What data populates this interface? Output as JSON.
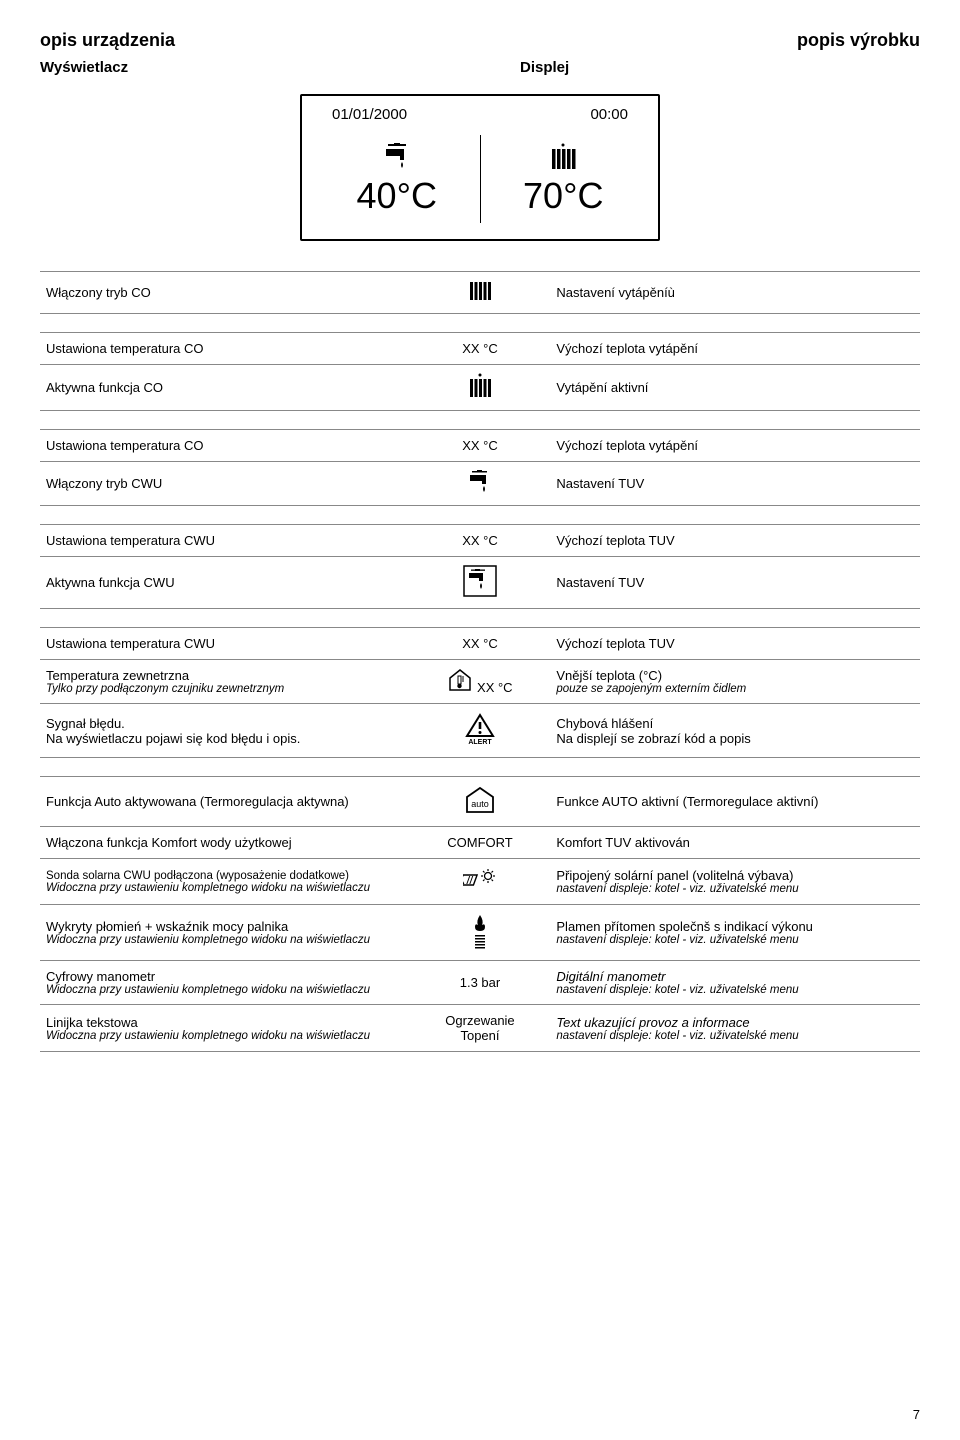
{
  "header": {
    "left": "opis urządzenia",
    "right": "popis výrobku"
  },
  "sub": {
    "left": "Wyświetlacz",
    "right": "Displej"
  },
  "display": {
    "date": "01/01/2000",
    "time": "00:00",
    "temp_left": "40°C",
    "temp_right": "70°C"
  },
  "groups": [
    {
      "rows": [
        {
          "l": "Włączony tryb CO",
          "icon": "radiator",
          "r": "Nastavení vytápěníù"
        }
      ]
    },
    {
      "rows": [
        {
          "l": "Ustawiona temperatura CO",
          "mid_text": "XX °C",
          "r": "Výchozí teplota vytápění"
        },
        {
          "l": "Aktywna funkcja CO",
          "icon": "radiator-dot",
          "r": "Vytápění aktivní"
        }
      ]
    },
    {
      "rows": [
        {
          "l": "Ustawiona temperatura CO",
          "mid_text": "XX °C",
          "r": "Výchozí teplota vytápění"
        },
        {
          "l": "Włączony tryb CWU",
          "icon": "tap",
          "r": "Nastavení TUV"
        }
      ]
    },
    {
      "rows": [
        {
          "l": "Ustawiona temperatura CWU",
          "mid_text": "XX °C",
          "r": "Výchozí teplota TUV"
        },
        {
          "l": "Aktywna funkcja CWU",
          "icon": "tap-box",
          "r": "Nastavení TUV"
        }
      ]
    },
    {
      "rows": [
        {
          "l": "Ustawiona temperatura CWU",
          "mid_text": "XX °C",
          "r": "Výchozí teplota TUV"
        },
        {
          "l": "Temperatura zewnetrzna",
          "l_sub": "Tylko przy podłączonym czujniku zewnetrznym",
          "icon": "ext-temp",
          "mid_text_right": "XX °C",
          "r": "Vnější teplota (°C)",
          "r_sub": "pouze se zapojeným externím čidlem"
        },
        {
          "l": "Sygnał błędu.",
          "l_sub": "Na wyświetlaczu pojawi się kod błędu i opis.",
          "l_sub_plain": true,
          "icon": "alert",
          "r": "Chybová hlášení",
          "r_sub": "Na displejí se zobrazí kód a popis",
          "r_sub_plain": true
        }
      ]
    },
    {
      "rows": [
        {
          "l": "Funkcja Auto aktywowana (Termoregulacja aktywna)",
          "icon": "auto",
          "r": "Funkce AUTO aktivní (Termoregulace aktivní)"
        },
        {
          "l": "Włączona funkcja Komfort wody użytkowej",
          "mid_text": "COMFORT",
          "r": "Komfort TUV aktivován"
        },
        {
          "l": "Sonda solarna CWU podłączona (wyposażenie dodatkowe)",
          "l_sub": "Widoczna przy ustawieniu kompletnego widoku na wiświetlaczu",
          "l_small": true,
          "icon": "solar",
          "r": "Připojený solární panel (volitelná výbava)",
          "r_sub": "nastavení displeje: kotel  - viz. uživatelské menu"
        },
        {
          "l": "Wykryty płomień + wskaźnik mocy palnika",
          "l_sub": "Widoczna przy ustawieniu kompletnego widoku na wiświetlaczu",
          "icon": "flame",
          "r": "Plamen přítomen  společnš s indikací výkonu",
          "r_sub": "nastavení displeje: kotel  - viz. uživatelské menu"
        },
        {
          "l": "Cyfrowy manometr",
          "l_sub": "Widoczna przy ustawieniu kompletnego widoku na wiświetlaczu",
          "mid_text": "1.3 bar",
          "r": "Digitální manometr",
          "r_plain_italic": true,
          "r_sub": "nastavení displeje: kotel  - viz. uživatelské menu"
        },
        {
          "l": "Linijka tekstowa",
          "l_sub": "Widoczna przy ustawieniu kompletnego widoku na wiświetlaczu",
          "mid_text": "Ogrzewanie",
          "mid_text2": "Topení",
          "r": "Text ukazující provoz  a informace",
          "r_plain_italic": true,
          "r_sub": "nastavení displeje: kotel  - viz. uživatelské menu"
        }
      ]
    }
  ],
  "page_number": "7"
}
